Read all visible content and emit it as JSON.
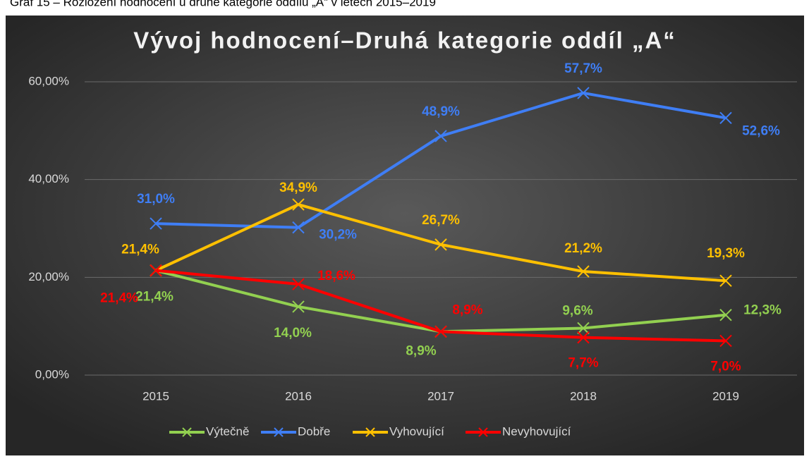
{
  "caption": "Graf 15 – Rozložení hodnocení u druhé kategorie oddílu „A“ v letech 2015–2019",
  "chart_data": {
    "type": "line",
    "title": "Vývoj hodnocení–Druhá kategorie oddíl „A“",
    "categories": [
      "2015",
      "2016",
      "2017",
      "2018",
      "2019"
    ],
    "ylim": [
      0,
      60
    ],
    "yticks": [
      {
        "value": 0,
        "label": "0,00%"
      },
      {
        "value": 20,
        "label": "20,00%"
      },
      {
        "value": 40,
        "label": "40,00%"
      },
      {
        "value": 60,
        "label": "60,00%"
      }
    ],
    "legend": "bottom",
    "series": [
      {
        "name": "Výtečně",
        "color": "#92d050",
        "values": [
          21.4,
          14.0,
          8.9,
          9.6,
          12.3
        ],
        "value_labels": [
          "21,4%",
          "14,0%",
          "8,9%",
          "9,6%",
          "12,3%"
        ]
      },
      {
        "name": "Dobře",
        "color": "#3f7ef5",
        "values": [
          31.0,
          30.2,
          48.9,
          57.7,
          52.6
        ],
        "value_labels": [
          "31,0%",
          "30,2%",
          "48,9%",
          "57,7%",
          "52,6%"
        ]
      },
      {
        "name": "Vyhovující",
        "color": "#ffc000",
        "values": [
          21.4,
          34.9,
          26.7,
          21.2,
          19.3
        ],
        "value_labels": [
          "21,4%",
          "34,9%",
          "26,7%",
          "21,2%",
          "19,3%"
        ]
      },
      {
        "name": "Nevyhovující",
        "color": "#ff0000",
        "values": [
          21.4,
          18.6,
          8.9,
          7.7,
          7.0
        ],
        "value_labels": [
          "21,4%",
          "18,6%",
          "8,9%",
          "7,7%",
          "7,0%"
        ]
      }
    ]
  }
}
